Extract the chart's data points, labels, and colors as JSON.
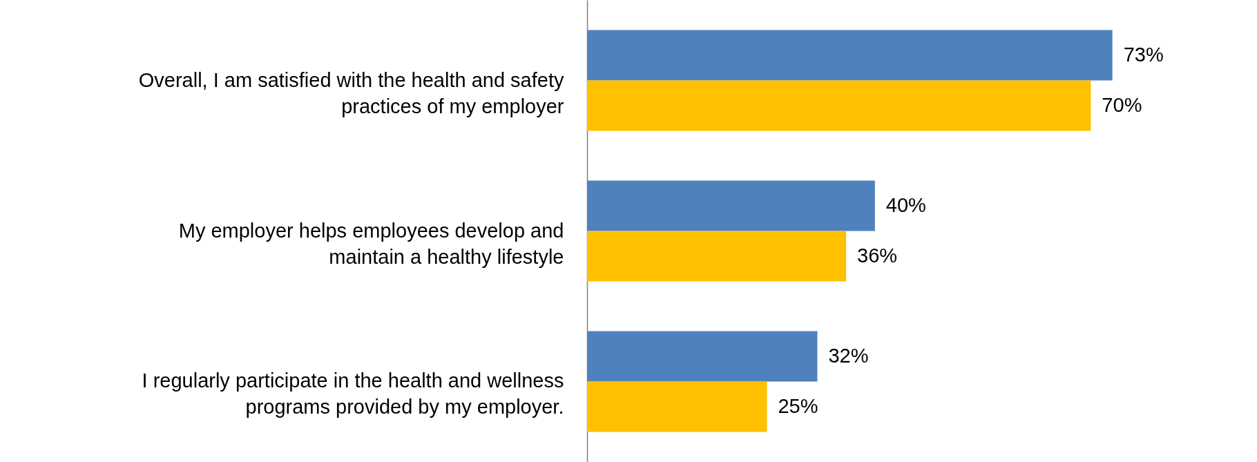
{
  "chart_data": {
    "type": "bar",
    "orientation": "horizontal",
    "categories": [
      "Overall, I am satisfied with the health and safety\npractices of my employer",
      "My employer helps employees develop and\nmaintain a healthy lifestyle",
      "I regularly participate in the health and wellness\nprograms provided by my employer."
    ],
    "series": [
      {
        "color": "#4f81bd",
        "values": [
          73,
          40,
          32
        ],
        "value_labels": [
          "73%",
          "40%",
          "32%"
        ]
      },
      {
        "color": "#ffc000",
        "values": [
          70,
          36,
          25
        ],
        "value_labels": [
          "70%",
          "36%",
          "25%"
        ]
      }
    ],
    "grid": false
  }
}
